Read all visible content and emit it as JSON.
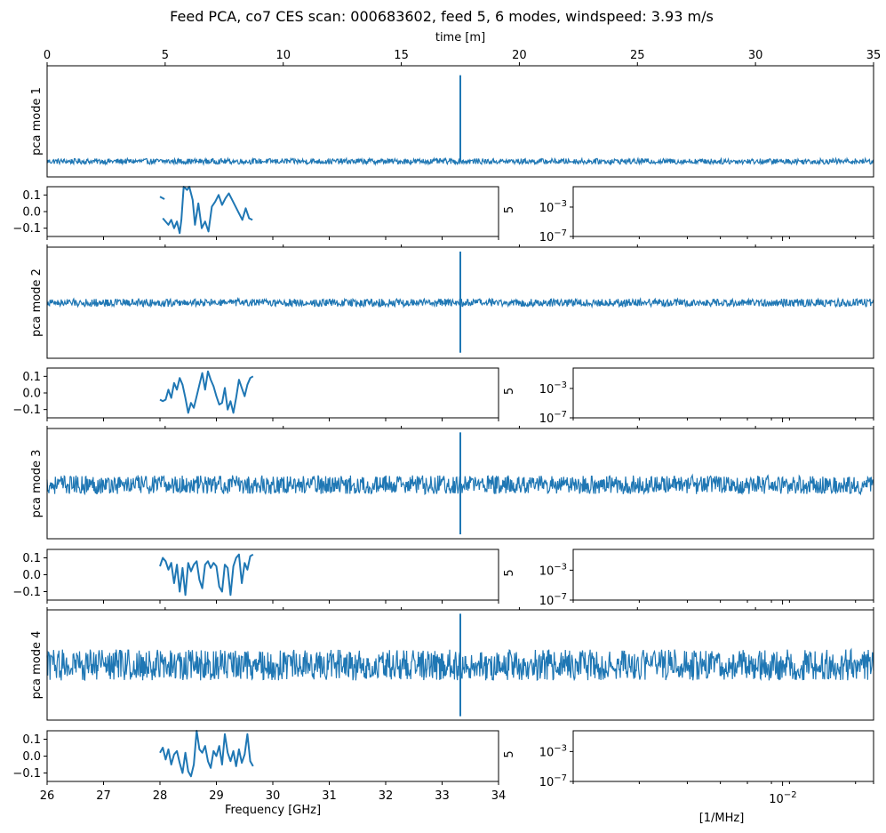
{
  "figure": {
    "title": "Feed PCA, co7 CES scan: 000683602, feed 5, 6 modes, windspeed: 3.93 m/s"
  },
  "colors": {
    "series": "#1f77b4",
    "axes": "#000000",
    "background": "#ffffff"
  },
  "chart_data": [
    {
      "type": "line",
      "role": "time-stream",
      "ylabel": "pca mode 1",
      "xlabel": "time [m]",
      "xlim": [
        0,
        35
      ],
      "xticks": [
        "0",
        "5",
        "10",
        "15",
        "20",
        "25",
        "30",
        "35"
      ],
      "y_range_relative": [
        -1,
        1
      ],
      "baseline": -0.72,
      "noise_amplitude": 0.05,
      "spike": {
        "x": 17.5,
        "top": 0.83,
        "bottom": -0.72
      }
    },
    {
      "type": "line",
      "role": "time-stream",
      "ylabel": "pca mode 2",
      "xlim": [
        0,
        35
      ],
      "y_range_relative": [
        -1,
        1
      ],
      "baseline": 0.0,
      "noise_amplitude": 0.07,
      "spike": {
        "x": 17.5,
        "top": 0.92,
        "bottom": -0.9
      }
    },
    {
      "type": "line",
      "role": "time-stream",
      "ylabel": "pca mode 3",
      "xlim": [
        0,
        35
      ],
      "y_range_relative": [
        -1,
        1
      ],
      "baseline": -0.02,
      "noise_amplitude": 0.17,
      "spike": {
        "x": 17.5,
        "top": 0.93,
        "bottom": -0.92
      }
    },
    {
      "type": "line",
      "role": "time-stream",
      "ylabel": "pca mode 4",
      "xlim": [
        0,
        35
      ],
      "y_range_relative": [
        -1,
        1
      ],
      "baseline": 0.0,
      "noise_amplitude": 0.28,
      "spike": {
        "x": 17.5,
        "top": 0.93,
        "bottom": -0.93
      }
    },
    {
      "type": "line",
      "role": "frequency-component",
      "ylim": [
        -0.15,
        0.15
      ],
      "yticks": [
        "0.1",
        "0.0",
        "−0.1"
      ],
      "xlim": [
        26,
        34
      ],
      "segments": [
        {
          "x": [
            28.0,
            28.08
          ],
          "y": [
            0.09,
            0.075
          ]
        },
        {
          "x": [
            28.05,
            28.15,
            28.2,
            28.25,
            28.3,
            28.35,
            28.38,
            28.42,
            28.48,
            28.52,
            28.58,
            28.62,
            28.68,
            28.74,
            28.8,
            28.86,
            28.92,
            28.98,
            29.04,
            29.1,
            29.16,
            29.22,
            29.28,
            29.34,
            29.4,
            29.46,
            29.52,
            29.58,
            29.64
          ],
          "y": [
            -0.04,
            -0.08,
            -0.05,
            -0.1,
            -0.06,
            -0.13,
            -0.05,
            0.15,
            0.13,
            0.15,
            0.07,
            -0.08,
            0.05,
            -0.1,
            -0.06,
            -0.12,
            0.03,
            0.06,
            0.1,
            0.04,
            0.08,
            0.11,
            0.07,
            0.03,
            -0.01,
            -0.05,
            0.02,
            -0.04,
            -0.05
          ]
        }
      ]
    },
    {
      "type": "line",
      "role": "frequency-component",
      "ylim": [
        -0.15,
        0.15
      ],
      "yticks": [
        "0.1",
        "0.0",
        "−0.1"
      ],
      "xlim": [
        26,
        34
      ],
      "segments": [
        {
          "x": [
            28.0,
            28.05,
            28.1,
            28.15,
            28.2,
            28.25,
            28.3,
            28.35,
            28.4,
            28.45,
            28.5,
            28.55,
            28.6,
            28.65,
            28.7,
            28.75,
            28.8,
            28.85,
            28.9,
            28.95,
            29.0,
            29.05,
            29.1,
            29.15,
            29.2,
            29.25,
            29.3,
            29.35,
            29.4,
            29.45,
            29.5,
            29.55,
            29.6,
            29.65
          ],
          "y": [
            -0.04,
            -0.05,
            -0.04,
            0.02,
            -0.03,
            0.06,
            0.02,
            0.09,
            0.05,
            -0.03,
            -0.12,
            -0.06,
            -0.09,
            -0.02,
            0.05,
            0.12,
            0.02,
            0.13,
            0.08,
            0.04,
            -0.02,
            -0.07,
            -0.06,
            0.03,
            -0.1,
            -0.05,
            -0.12,
            -0.03,
            0.08,
            0.03,
            -0.02,
            0.05,
            0.09,
            0.1
          ]
        }
      ]
    },
    {
      "type": "line",
      "role": "frequency-component",
      "ylim": [
        -0.15,
        0.15
      ],
      "yticks": [
        "0.1",
        "0.0",
        "−0.1"
      ],
      "xlim": [
        26,
        34
      ],
      "segments": [
        {
          "x": [
            28.0,
            28.05,
            28.1,
            28.15,
            28.2,
            28.25,
            28.3,
            28.35,
            28.4,
            28.45,
            28.5,
            28.55,
            28.6,
            28.65,
            28.7,
            28.75,
            28.8,
            28.85,
            28.9,
            28.95,
            29.0,
            29.05,
            29.1,
            29.15,
            29.2,
            29.25,
            29.3,
            29.35,
            29.4,
            29.45,
            29.5,
            29.55,
            29.6,
            29.65
          ],
          "y": [
            0.05,
            0.1,
            0.08,
            0.03,
            0.07,
            -0.05,
            0.06,
            -0.1,
            0.04,
            -0.12,
            0.07,
            0.02,
            0.06,
            0.08,
            -0.03,
            -0.08,
            0.06,
            0.08,
            0.04,
            0.07,
            0.05,
            -0.07,
            -0.1,
            0.06,
            0.04,
            -0.12,
            0.05,
            0.1,
            0.12,
            -0.05,
            0.07,
            0.03,
            0.11,
            0.12
          ]
        }
      ]
    },
    {
      "type": "line",
      "role": "frequency-component",
      "ylim": [
        -0.15,
        0.15
      ],
      "yticks": [
        "0.1",
        "0.0",
        "−0.1"
      ],
      "xlim": [
        26,
        34
      ],
      "xlabel": "Frequency [GHz]",
      "xticks": [
        "26",
        "27",
        "28",
        "29",
        "30",
        "31",
        "32",
        "33",
        "34"
      ],
      "segments": [
        {
          "x": [
            28.0,
            28.05,
            28.1,
            28.15,
            28.2,
            28.25,
            28.3,
            28.35,
            28.4,
            28.45,
            28.5,
            28.55,
            28.6,
            28.65,
            28.7,
            28.75,
            28.8,
            28.85,
            28.9,
            28.95,
            29.0,
            29.05,
            29.1,
            29.15,
            29.2,
            29.25,
            29.3,
            29.35,
            29.4,
            29.45,
            29.5,
            29.55,
            29.6,
            29.65
          ],
          "y": [
            0.02,
            0.05,
            -0.02,
            0.04,
            -0.05,
            0.01,
            0.03,
            -0.04,
            -0.1,
            0.02,
            -0.09,
            -0.12,
            -0.05,
            0.15,
            0.04,
            0.02,
            0.06,
            -0.03,
            -0.07,
            0.03,
            0.0,
            0.06,
            -0.05,
            0.13,
            0.02,
            -0.03,
            0.03,
            -0.06,
            0.04,
            -0.04,
            0.01,
            0.13,
            -0.03,
            -0.06
          ]
        }
      ]
    },
    {
      "type": "line",
      "role": "power-spectrum",
      "ylabel_fragment": "5",
      "yscale": "log",
      "ytick_labels": [
        "10^-3",
        "10^-7"
      ],
      "xscale": "log",
      "series": []
    },
    {
      "type": "line",
      "role": "power-spectrum",
      "ylabel_fragment": "5",
      "yscale": "log",
      "ytick_labels": [
        "10^-3",
        "10^-7"
      ],
      "xscale": "log",
      "series": []
    },
    {
      "type": "line",
      "role": "power-spectrum",
      "ylabel_fragment": "5",
      "yscale": "log",
      "ytick_labels": [
        "10^-3",
        "10^-7"
      ],
      "xscale": "log",
      "series": []
    },
    {
      "type": "line",
      "role": "power-spectrum",
      "ylabel_fragment": "5",
      "yscale": "log",
      "ytick_labels": [
        "10^-3",
        "10^-7"
      ],
      "xscale": "log",
      "xlabel": "[1/MHz]",
      "xtick_major": "10^-2",
      "series": []
    }
  ]
}
